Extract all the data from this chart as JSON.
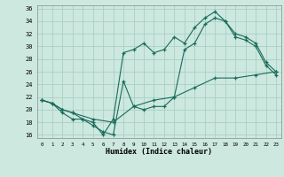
{
  "xlabel": "Humidex (Indice chaleur)",
  "bg_color": "#cce8df",
  "grid_color": "#aacfc5",
  "line_color": "#1a6b5a",
  "xlim": [
    -0.5,
    23.5
  ],
  "ylim": [
    15.5,
    36.5
  ],
  "xticks": [
    0,
    1,
    2,
    3,
    4,
    5,
    6,
    7,
    8,
    9,
    10,
    11,
    12,
    13,
    14,
    15,
    16,
    17,
    18,
    19,
    20,
    21,
    22,
    23
  ],
  "yticks": [
    16,
    18,
    20,
    22,
    24,
    26,
    28,
    30,
    32,
    34,
    36
  ],
  "line1_x": [
    0,
    1,
    2,
    3,
    4,
    5,
    6,
    7,
    8,
    9,
    10,
    11,
    12,
    13,
    14,
    15,
    16,
    17,
    18,
    19,
    20,
    21,
    22,
    23
  ],
  "line1_y": [
    21.5,
    21.0,
    20.0,
    19.5,
    18.5,
    18.0,
    16.0,
    18.5,
    29.0,
    29.5,
    30.5,
    29.0,
    29.5,
    31.5,
    30.5,
    33.0,
    34.5,
    35.5,
    34.0,
    32.0,
    31.5,
    30.5,
    27.5,
    26.0
  ],
  "line2_x": [
    0,
    1,
    2,
    3,
    4,
    5,
    6,
    7,
    8,
    9,
    10,
    11,
    12,
    13,
    14,
    15,
    16,
    17,
    18,
    19,
    20,
    21,
    22,
    23
  ],
  "line2_y": [
    21.5,
    21.0,
    19.5,
    18.5,
    18.5,
    17.5,
    16.5,
    16.0,
    24.5,
    20.5,
    20.0,
    20.5,
    20.5,
    22.0,
    29.5,
    30.5,
    33.5,
    34.5,
    34.0,
    31.5,
    31.0,
    30.0,
    27.0,
    25.5
  ],
  "line3_x": [
    0,
    1,
    2,
    3,
    5,
    7,
    9,
    11,
    13,
    15,
    17,
    19,
    21,
    23
  ],
  "line3_y": [
    21.5,
    21.0,
    20.0,
    19.5,
    18.5,
    18.0,
    20.5,
    21.5,
    22.0,
    23.5,
    25.0,
    25.0,
    25.5,
    26.0
  ]
}
